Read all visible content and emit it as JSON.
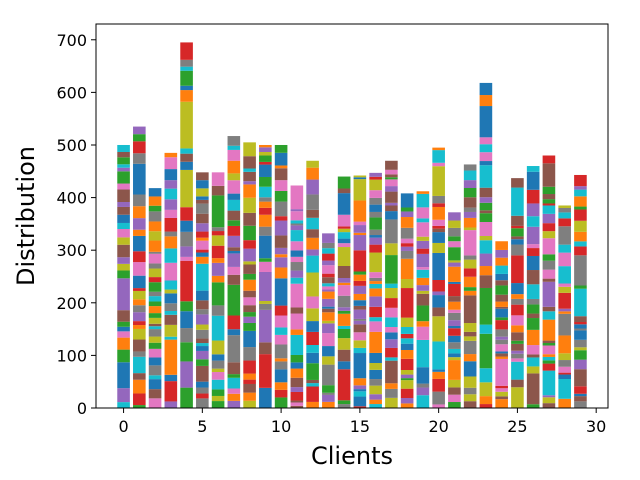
{
  "chart_data": {
    "type": "bar",
    "stacked": true,
    "xlabel": "Clients",
    "ylabel": "Distribution",
    "xlim": [
      -1.75,
      30.75
    ],
    "ylim": [
      0,
      730
    ],
    "xticks": [
      0,
      5,
      10,
      15,
      20,
      25,
      30
    ],
    "yticks": [
      0,
      100,
      200,
      300,
      400,
      500,
      600,
      700
    ],
    "grid": false,
    "legend": "none",
    "categories": [
      0,
      1,
      2,
      3,
      4,
      5,
      6,
      7,
      8,
      9,
      10,
      11,
      12,
      13,
      14,
      15,
      16,
      17,
      18,
      19,
      20,
      21,
      22,
      23,
      24,
      25,
      26,
      27,
      28,
      29
    ],
    "totals": [
      500,
      535,
      418,
      485,
      695,
      448,
      448,
      517,
      505,
      500,
      500,
      423,
      470,
      332,
      440,
      442,
      447,
      470,
      408,
      412,
      495,
      372,
      463,
      618,
      317,
      437,
      460,
      480,
      385,
      443
    ],
    "palette": [
      "#1f77b4",
      "#ff7f0e",
      "#2ca02c",
      "#d62728",
      "#9467bd",
      "#8c564b",
      "#e377c2",
      "#7f7f7f",
      "#bcbd22",
      "#17becf"
    ]
  }
}
